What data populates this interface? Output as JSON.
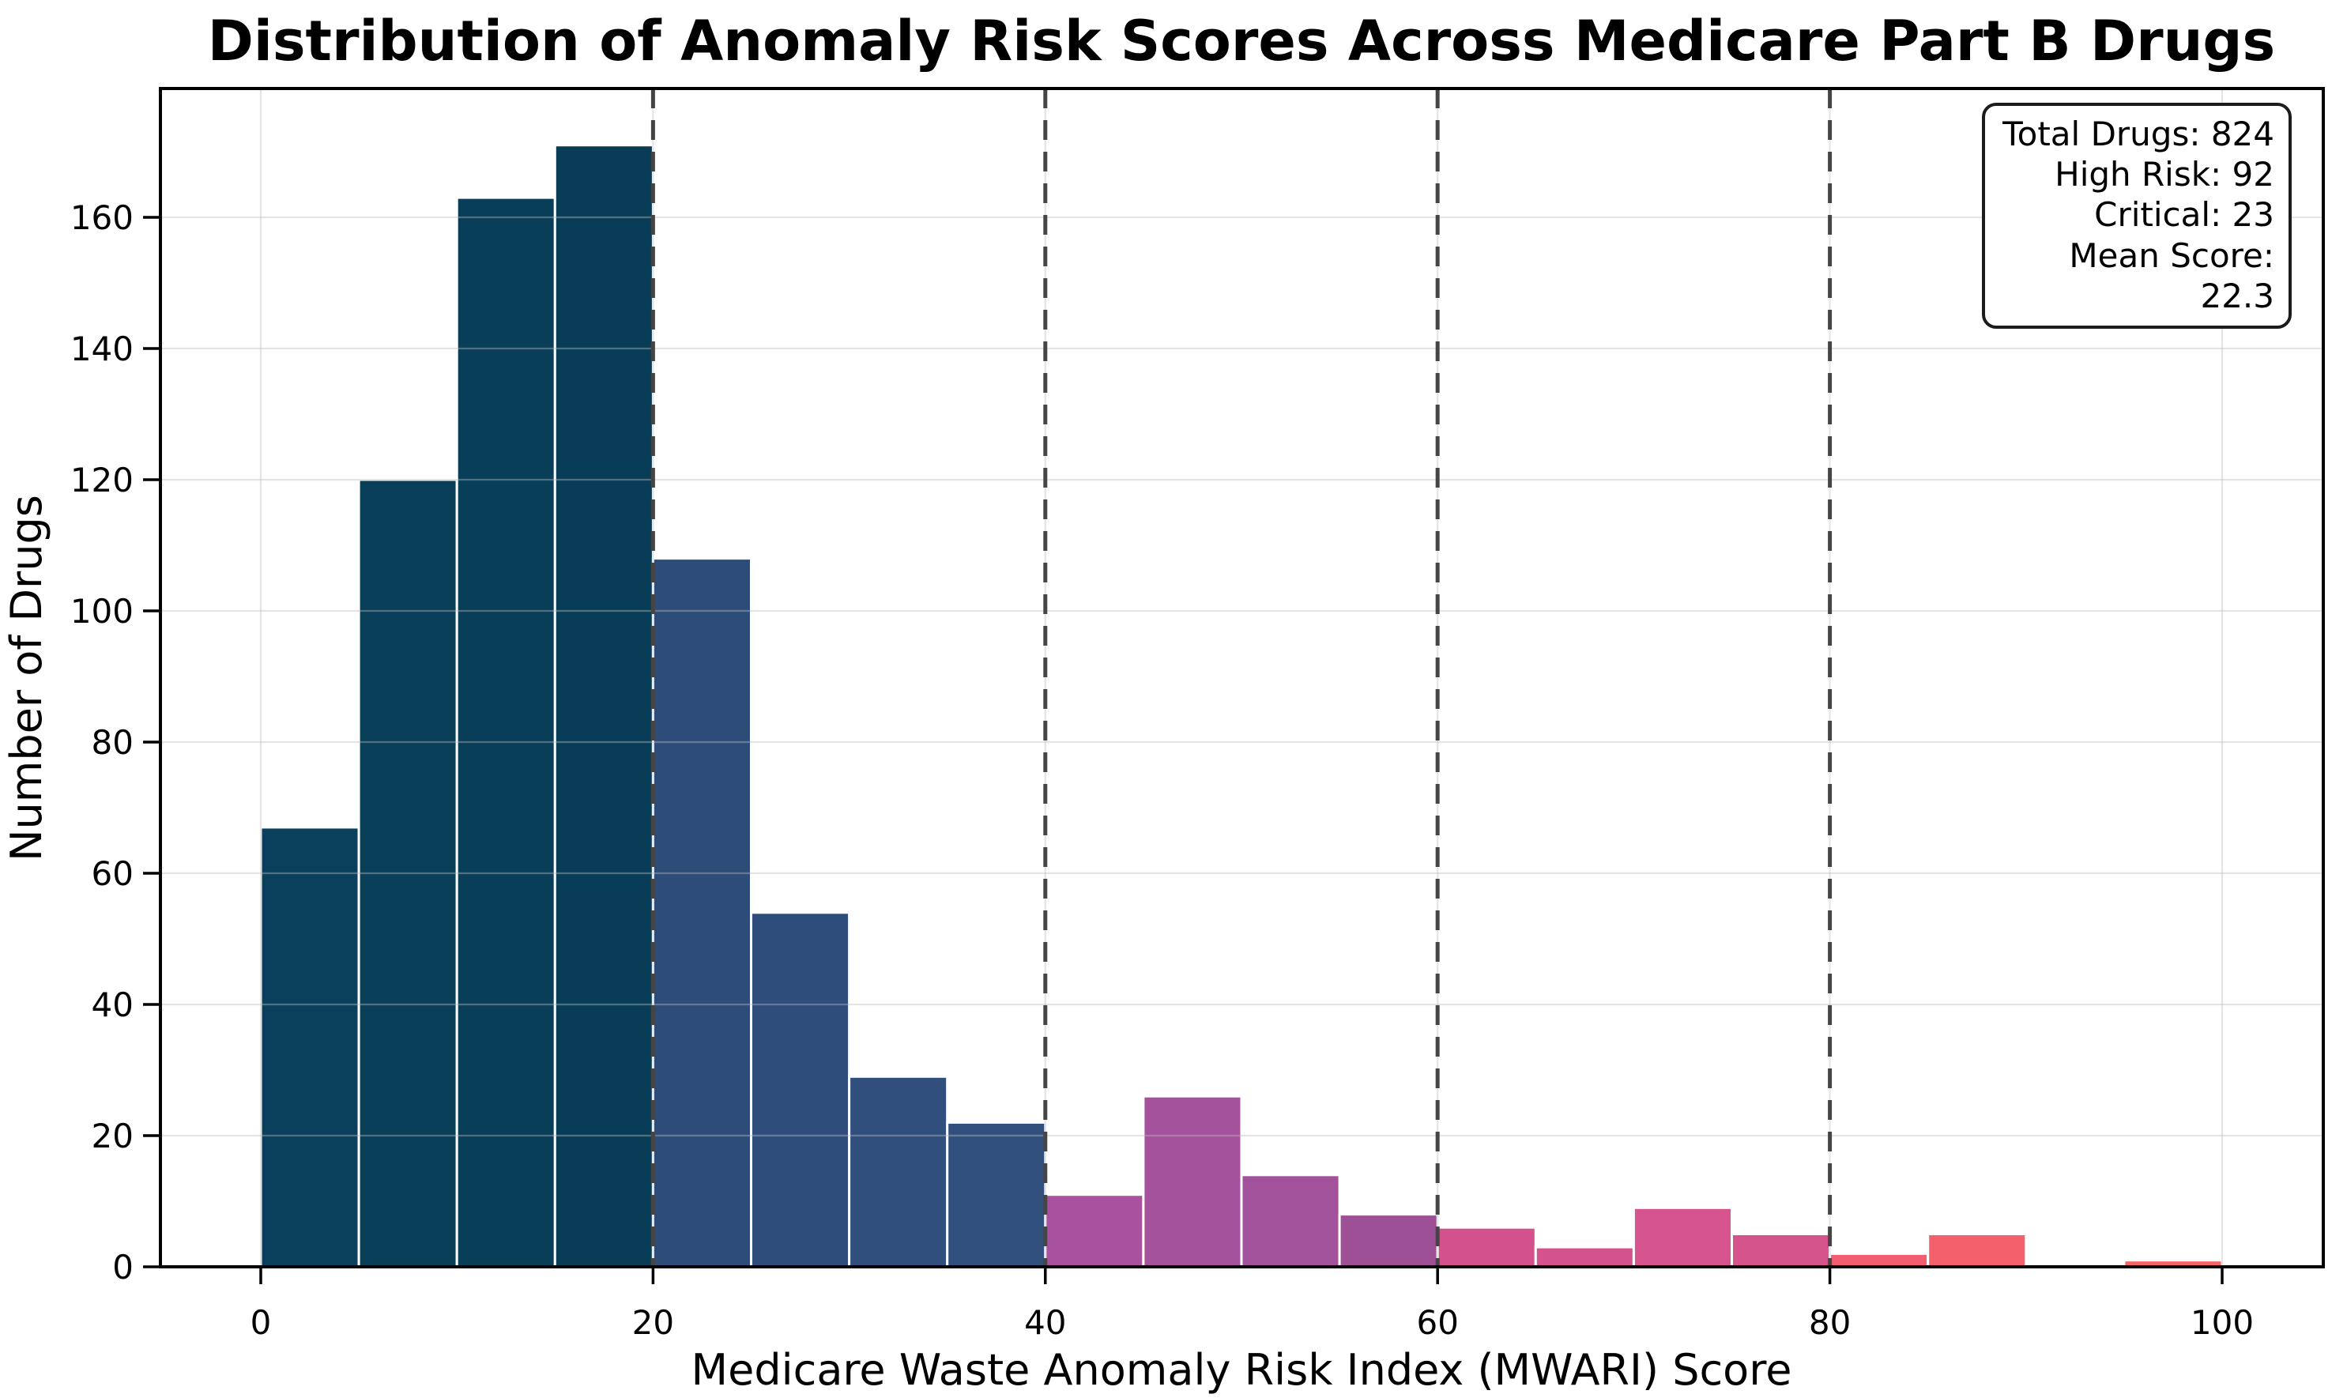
{
  "chart_data": {
    "type": "bar",
    "subtype": "histogram",
    "title": "Distribution of Anomaly Risk Scores Across Medicare Part B Drugs",
    "xlabel": "Medicare Waste Anomaly Risk Index (MWARI) Score",
    "ylabel": "Number of Drugs",
    "xlim": [
      -5.2,
      105.2
    ],
    "ylim": [
      0,
      179.6
    ],
    "grid": true,
    "x_ticks": [
      0,
      20,
      40,
      60,
      80,
      100
    ],
    "y_ticks": [
      0,
      20,
      40,
      60,
      80,
      100,
      120,
      140,
      160
    ],
    "threshold_lines_x": [
      20,
      40,
      60,
      80
    ],
    "bin_width": 5,
    "bins": [
      {
        "x0": 0,
        "x1": 5,
        "count": 67,
        "color": "#0a405c"
      },
      {
        "x0": 5,
        "x1": 10,
        "count": 120,
        "color": "#0a3f5a"
      },
      {
        "x0": 10,
        "x1": 15,
        "count": 163,
        "color": "#093e59"
      },
      {
        "x0": 15,
        "x1": 20,
        "count": 171,
        "color": "#093d57"
      },
      {
        "x0": 20,
        "x1": 25,
        "count": 108,
        "color": "#2e4c78"
      },
      {
        "x0": 25,
        "x1": 30,
        "count": 54,
        "color": "#2f4d7a"
      },
      {
        "x0": 30,
        "x1": 35,
        "count": 29,
        "color": "#314f7c"
      },
      {
        "x0": 35,
        "x1": 40,
        "count": 22,
        "color": "#32507e"
      },
      {
        "x0": 40,
        "x1": 45,
        "count": 11,
        "color": "#a8519f"
      },
      {
        "x0": 45,
        "x1": 50,
        "count": 26,
        "color": "#a5529d"
      },
      {
        "x0": 50,
        "x1": 55,
        "count": 14,
        "color": "#a2519b"
      },
      {
        "x0": 55,
        "x1": 60,
        "count": 8,
        "color": "#9d5096"
      },
      {
        "x0": 60,
        "x1": 65,
        "count": 6,
        "color": "#d3528b"
      },
      {
        "x0": 65,
        "x1": 70,
        "count": 3,
        "color": "#d4538c"
      },
      {
        "x0": 70,
        "x1": 75,
        "count": 9,
        "color": "#d7558e"
      },
      {
        "x0": 75,
        "x1": 80,
        "count": 5,
        "color": "#d5548c"
      },
      {
        "x0": 80,
        "x1": 85,
        "count": 2,
        "color": "#f25e6f"
      },
      {
        "x0": 85,
        "x1": 90,
        "count": 5,
        "color": "#f4606b"
      },
      {
        "x0": 90,
        "x1": 95,
        "count": 0,
        "color": "#f56267"
      },
      {
        "x0": 95,
        "x1": 100,
        "count": 1,
        "color": "#f66463"
      }
    ],
    "colors": {
      "background": "#ffffff",
      "bar_edge": "#ffffff",
      "gridline": "#bbbbbb",
      "threshold_line": "#454545",
      "spine": "#000000",
      "text": "#000000"
    }
  },
  "stats": {
    "lines": [
      "Total Drugs: 824",
      "High Risk: 92",
      "Critical: 23",
      "Mean Score: 22.3"
    ]
  }
}
